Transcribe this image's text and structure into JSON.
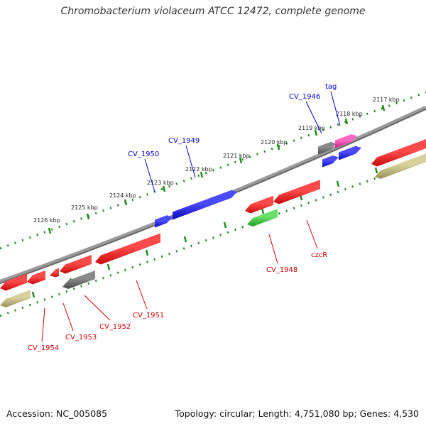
{
  "title": "Chromobacterium violaceum ATCC 12472, complete genome",
  "footer": {
    "accession": "Accession: NC_005085",
    "stats": "Topology: circular; Length: 4,751,080 bp; Genes: 4,530"
  },
  "colors": {
    "backbone": "#7a7a7a",
    "tick_dots": "#1f8a1f",
    "forward_gene": "#1414e6",
    "reverse_gene": "#ee1111",
    "pseudo_gene": "#666666",
    "rna_gene": "#33cc33",
    "highlight_gene": "#ee2aa0",
    "olive_feature": "#b8b070",
    "label_blue": "#0000cc",
    "label_red": "#cc0000"
  },
  "scale_labels": [
    {
      "text": "2117 kbp"
    },
    {
      "text": "2118 kbp"
    },
    {
      "text": "2119 kbp"
    },
    {
      "text": "2120 kbp"
    },
    {
      "text": "2121 kbp"
    },
    {
      "text": "2122 kbp"
    },
    {
      "text": "2123 kbp"
    },
    {
      "text": "2124 kbp"
    },
    {
      "text": "2125 kbp"
    },
    {
      "text": "2126 kbp"
    }
  ],
  "gene_labels": [
    {
      "text": "tag",
      "strand": "forward"
    },
    {
      "text": "CV_1946",
      "strand": "forward"
    },
    {
      "text": "CV_1949",
      "strand": "forward"
    },
    {
      "text": "CV_1950",
      "strand": "forward"
    },
    {
      "text": "czcR",
      "strand": "reverse"
    },
    {
      "text": "CV_1948",
      "strand": "reverse"
    },
    {
      "text": "CV_1951",
      "strand": "reverse"
    },
    {
      "text": "CV_1952",
      "strand": "reverse"
    },
    {
      "text": "CV_1953",
      "strand": "reverse"
    },
    {
      "text": "CV_1954",
      "strand": "reverse"
    }
  ]
}
